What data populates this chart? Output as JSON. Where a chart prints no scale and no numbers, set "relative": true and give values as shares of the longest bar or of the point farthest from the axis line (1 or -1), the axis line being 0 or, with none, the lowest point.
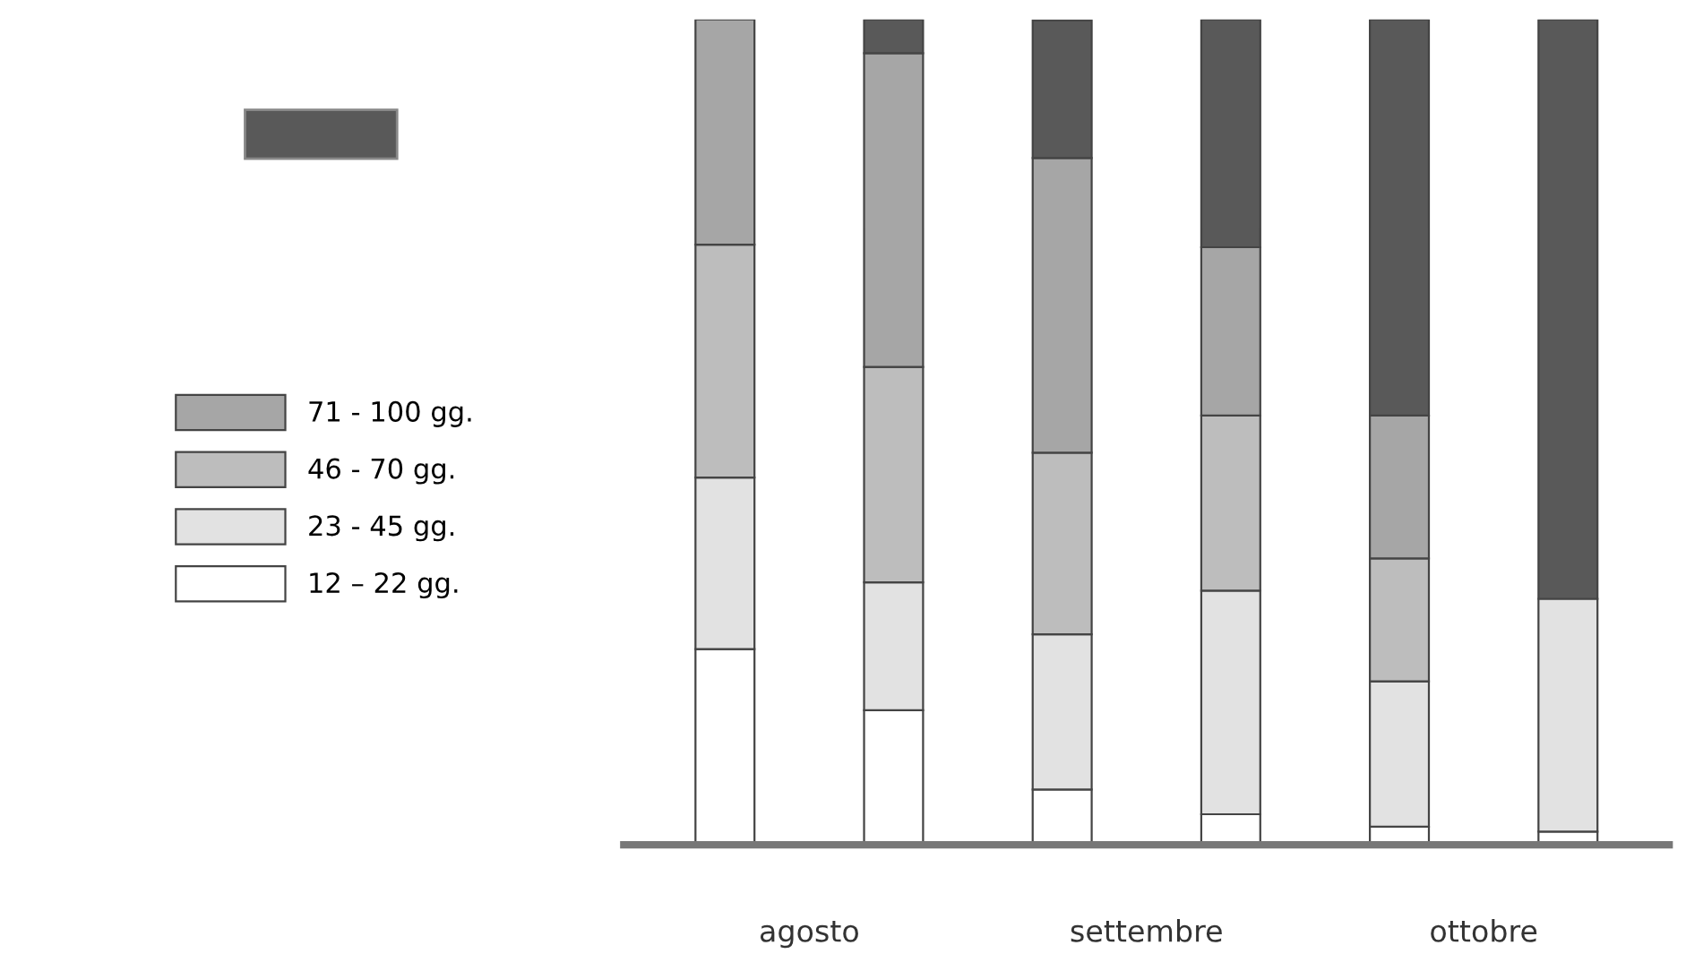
{
  "chart_data": {
    "type": "bar",
    "stacked": true,
    "relative": true,
    "legend": "left",
    "categories": [
      null,
      null,
      null,
      null,
      null,
      null
    ],
    "annotations": [
      "agosto",
      "settembre",
      "ottobre"
    ],
    "series": [
      {
        "name": "12 – 22 gg.",
        "color": "#ffffff",
        "values": [
          0.237,
          0.163,
          0.067,
          0.037,
          0.022,
          0.016
        ]
      },
      {
        "name": "23 - 45 gg.",
        "color": "#e2e2e2",
        "values": [
          0.208,
          0.155,
          0.188,
          0.271,
          0.176,
          0.282
        ]
      },
      {
        "name": "46 - 70 gg.",
        "color": "#bdbdbd",
        "values": [
          0.282,
          0.261,
          0.22,
          0.212,
          0.149,
          0
        ]
      },
      {
        "name": "71 - 100 gg.",
        "color": "#a6a6a6",
        "values": [
          0.273,
          0.38,
          0.357,
          0.204,
          0.173,
          0
        ]
      },
      {
        "color": "#595959",
        "values": [
          0,
          0.041,
          0.167,
          0.276,
          0.48,
          0.702
        ]
      }
    ]
  }
}
